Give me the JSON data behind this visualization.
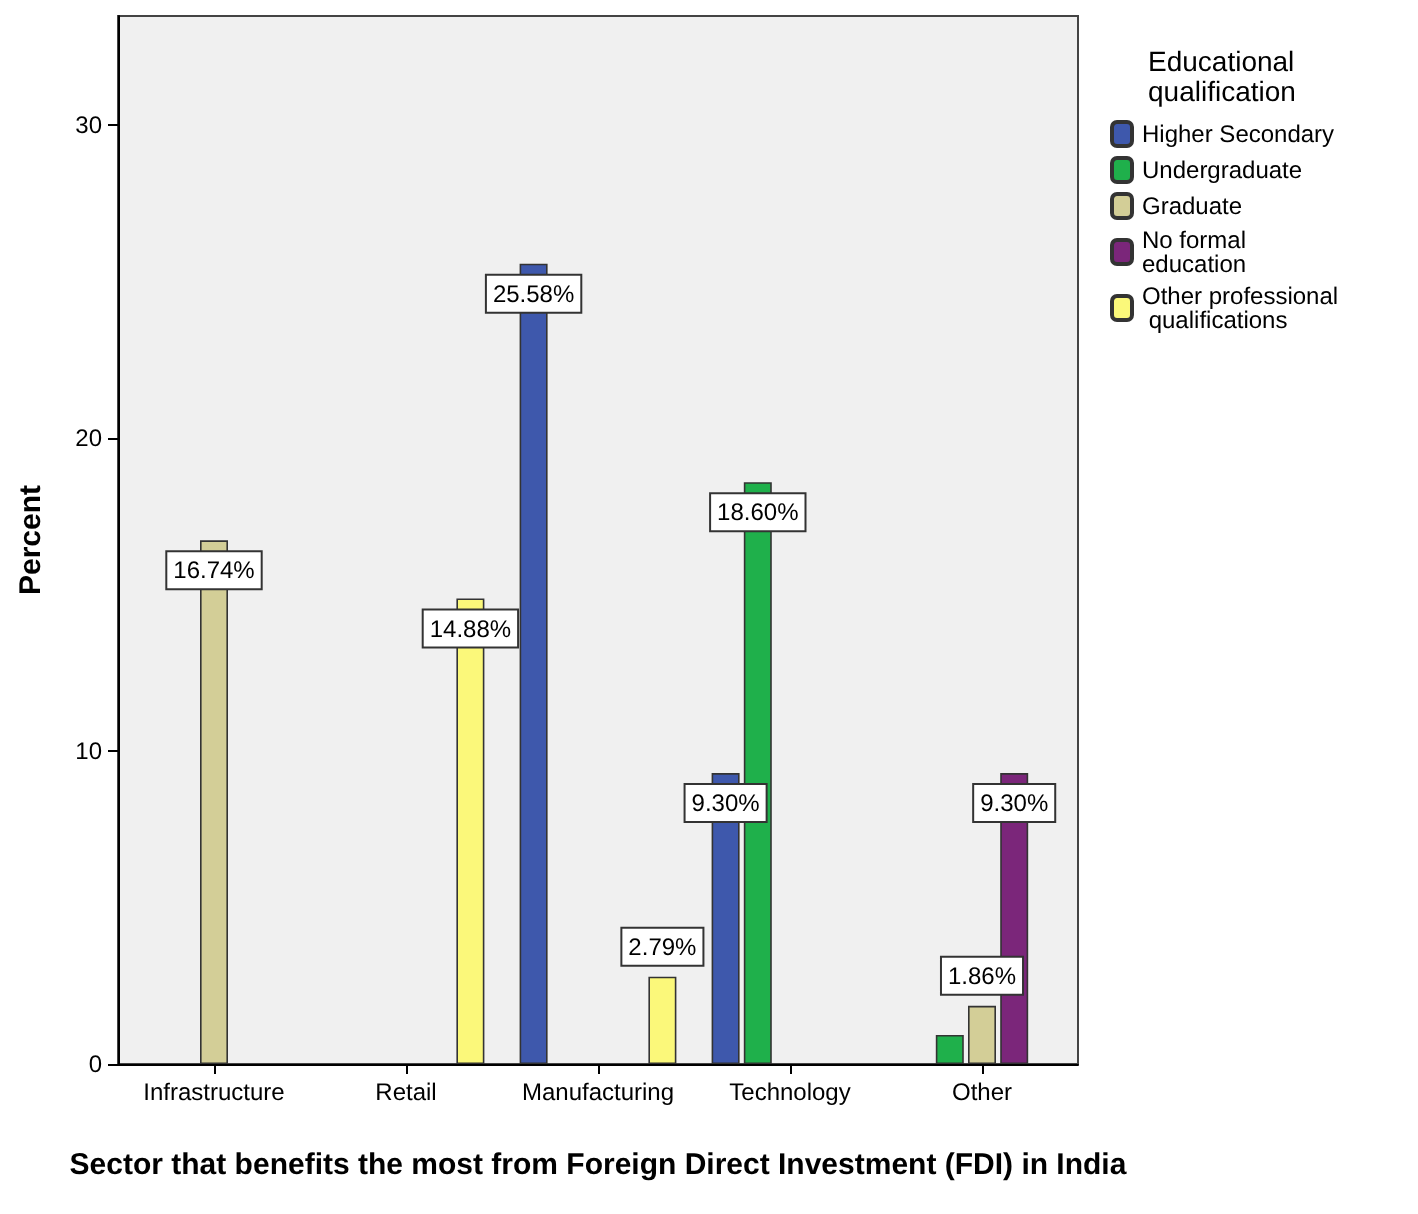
{
  "chart_data": {
    "type": "bar",
    "xlabel": "Sector that benefits the most from Foreign Direct Investment (FDI) in India",
    "ylabel": "Percent",
    "legend_title": "Educational qualification",
    "categories": [
      "Infrastructure",
      "Retail",
      "Manufacturing",
      "Technology",
      "Other"
    ],
    "series": [
      {
        "name": "Higher Secondary",
        "color": "#3e58ac",
        "values": [
          null,
          null,
          25.58,
          9.3,
          null
        ],
        "value_labels": [
          null,
          null,
          "25.58%",
          "9.30%",
          null
        ]
      },
      {
        "name": "Undergraduate",
        "color": "#1fb04b",
        "values": [
          null,
          null,
          null,
          18.6,
          0.93
        ],
        "value_labels": [
          null,
          null,
          null,
          "18.60%",
          null
        ]
      },
      {
        "name": "Graduate",
        "color": "#d3ce97",
        "values": [
          16.74,
          null,
          null,
          null,
          1.86
        ],
        "value_labels": [
          "16.74%",
          null,
          null,
          null,
          "1.86%"
        ]
      },
      {
        "name": "No formal education",
        "color": "#7b267a",
        "values": [
          null,
          null,
          null,
          null,
          9.3
        ],
        "value_labels": [
          null,
          null,
          null,
          null,
          "9.30%"
        ]
      },
      {
        "name": "Other professional qualifications",
        "color": "#fbf87a",
        "values": [
          null,
          14.88,
          2.79,
          null,
          null
        ],
        "value_labels": [
          null,
          "14.88%",
          "2.79%",
          null,
          null
        ]
      }
    ],
    "ylim": [
      0,
      33.5
    ],
    "yticks": [
      0,
      10,
      20,
      30
    ],
    "grid": false,
    "legend": "right"
  }
}
